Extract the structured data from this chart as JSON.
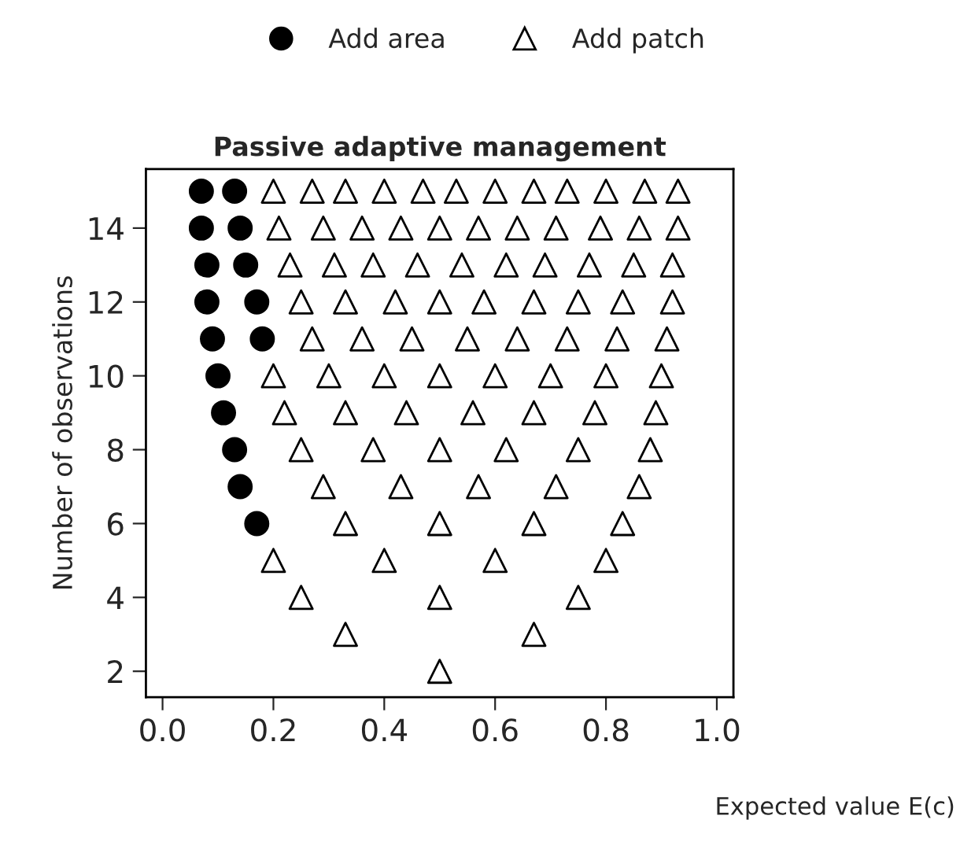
{
  "chart_data": {
    "type": "scatter",
    "title": "Passive adaptive management",
    "xlabel": "Expected value E(c)",
    "ylabel": "Number of observations",
    "xlim": [
      -0.03,
      1.03
    ],
    "ylim": [
      1.3,
      15.6
    ],
    "xticks": [
      {
        "value": 0,
        "label": "0.0"
      },
      0.2,
      0.4,
      0.6,
      0.8,
      {
        "value": 1,
        "label": "1.0"
      }
    ],
    "yticks": [
      2,
      4,
      6,
      8,
      10,
      12,
      14
    ],
    "grid": false,
    "legend": "top",
    "series": [
      {
        "name": "Add area",
        "color": "#000000",
        "marker": "circle",
        "x": [
          0.17,
          0.14,
          0.13,
          0.11,
          0.1,
          0.09,
          0.18,
          0.08,
          0.17,
          0.08,
          0.15,
          0.07,
          0.14,
          0.07,
          0.13
        ],
        "values": [
          6,
          7,
          8,
          9,
          10,
          11,
          11,
          12,
          12,
          13,
          13,
          14,
          14,
          15,
          15
        ]
      },
      {
        "name": "Add patch",
        "color": "#ffffff",
        "marker": "triangle",
        "x": [
          0.5,
          0.33,
          0.67,
          0.25,
          0.5,
          0.75,
          0.2,
          0.4,
          0.6,
          0.8,
          0.33,
          0.5,
          0.67,
          0.83,
          0.29,
          0.43,
          0.57,
          0.71,
          0.86,
          0.25,
          0.38,
          0.5,
          0.62,
          0.75,
          0.88,
          0.22,
          0.33,
          0.44,
          0.56,
          0.67,
          0.78,
          0.89,
          0.2,
          0.3,
          0.4,
          0.5,
          0.6,
          0.7,
          0.8,
          0.9,
          0.27,
          0.36,
          0.45,
          0.55,
          0.64,
          0.73,
          0.82,
          0.91,
          0.25,
          0.33,
          0.42,
          0.5,
          0.58,
          0.67,
          0.75,
          0.83,
          0.92,
          0.23,
          0.31,
          0.38,
          0.46,
          0.54,
          0.62,
          0.69,
          0.77,
          0.85,
          0.92,
          0.21,
          0.29,
          0.36,
          0.43,
          0.5,
          0.57,
          0.64,
          0.71,
          0.79,
          0.86,
          0.93,
          0.2,
          0.27,
          0.33,
          0.4,
          0.47,
          0.53,
          0.6,
          0.67,
          0.73,
          0.8,
          0.87,
          0.93
        ],
        "values": [
          2,
          3,
          3,
          4,
          4,
          4,
          5,
          5,
          5,
          5,
          6,
          6,
          6,
          6,
          7,
          7,
          7,
          7,
          7,
          8,
          8,
          8,
          8,
          8,
          8,
          9,
          9,
          9,
          9,
          9,
          9,
          9,
          10,
          10,
          10,
          10,
          10,
          10,
          10,
          10,
          11,
          11,
          11,
          11,
          11,
          11,
          11,
          11,
          12,
          12,
          12,
          12,
          12,
          12,
          12,
          12,
          12,
          13,
          13,
          13,
          13,
          13,
          13,
          13,
          13,
          13,
          13,
          14,
          14,
          14,
          14,
          14,
          14,
          14,
          14,
          14,
          14,
          14,
          15,
          15,
          15,
          15,
          15,
          15,
          15,
          15,
          15,
          15,
          15,
          15
        ]
      }
    ]
  }
}
